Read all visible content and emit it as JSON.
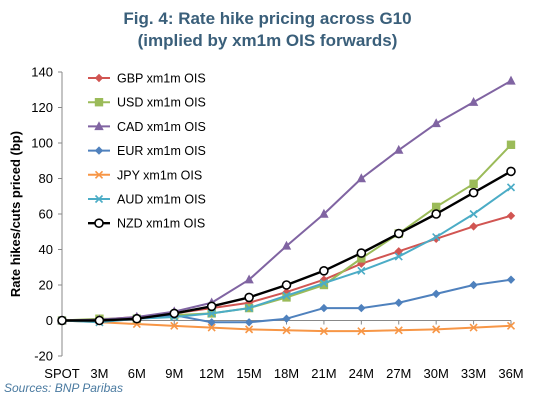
{
  "title_line1": "Fig. 4: Rate hike pricing across G10",
  "title_line2": "(implied by xm1m OIS forwards)",
  "source": "Sources: BNP Paribas",
  "chart_data": {
    "type": "line",
    "ylabel": "Rate hikes/cuts priced (bp)",
    "xlabel": "",
    "categories": [
      "SPOT",
      "3M",
      "6M",
      "9M",
      "12M",
      "15M",
      "18M",
      "21M",
      "24M",
      "27M",
      "30M",
      "33M",
      "36M"
    ],
    "ylim": [
      -20,
      140
    ],
    "yticks": [
      -20,
      0,
      20,
      40,
      60,
      80,
      100,
      120,
      140
    ],
    "grid": false,
    "legend_position": "top-left",
    "series": [
      {
        "name": "GBP xm1m OIS",
        "color": "#d15552",
        "marker": "diamond",
        "values": [
          0,
          0.5,
          2,
          4,
          7,
          10,
          16,
          23,
          32,
          39,
          46,
          53,
          59
        ]
      },
      {
        "name": "USD xm1m OIS",
        "color": "#9bbb59",
        "marker": "square",
        "values": [
          0,
          1,
          1,
          3,
          4,
          7,
          13,
          20,
          35,
          49,
          64,
          77,
          99
        ]
      },
      {
        "name": "CAD xm1m OIS",
        "color": "#8064a2",
        "marker": "triangle",
        "values": [
          0,
          0.5,
          2,
          5,
          10,
          23,
          42,
          60,
          80,
          96,
          111,
          123,
          135
        ]
      },
      {
        "name": "EUR xm1m OIS",
        "color": "#4f81bd",
        "marker": "diamond",
        "values": [
          0,
          0,
          1,
          3,
          -1,
          -1,
          1,
          7,
          7,
          10,
          15,
          20,
          23
        ]
      },
      {
        "name": "JPY xm1m OIS",
        "color": "#f79646",
        "marker": "x",
        "values": [
          0,
          -1,
          -2,
          -3,
          -4,
          -5,
          -5.5,
          -6,
          -6,
          -5.5,
          -5,
          -4,
          -3
        ]
      },
      {
        "name": "AUD xm1m OIS",
        "color": "#4bacc6",
        "marker": "x",
        "values": [
          0,
          -1,
          1,
          2,
          4,
          7,
          14,
          21,
          28,
          36,
          47,
          60,
          75
        ]
      },
      {
        "name": "NZD xm1m OIS",
        "color": "#000000",
        "marker": "circle",
        "values": [
          0,
          0,
          1,
          4,
          8,
          13,
          20,
          28,
          38,
          49,
          60,
          72,
          84
        ]
      }
    ]
  }
}
